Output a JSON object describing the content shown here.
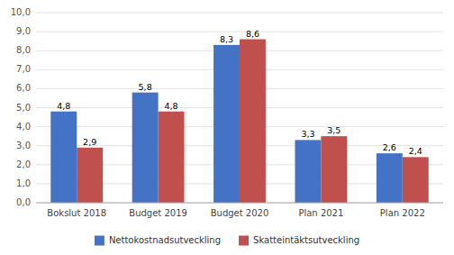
{
  "chart_data": {
    "type": "bar",
    "categories": [
      "Bokslut 2018",
      "Budget 2019",
      "Budget 2020",
      "Plan 2021",
      "Plan 2022"
    ],
    "series": [
      {
        "name": "Nettokostnadsutveckling",
        "color": "#4472C4",
        "values": [
          4.8,
          5.8,
          8.3,
          3.3,
          2.6
        ],
        "value_labels": [
          "4,8",
          "5,8",
          "8,3",
          "3,3",
          "2,6"
        ]
      },
      {
        "name": "Skatteintäktsutveckling",
        "color": "#C0504D",
        "values": [
          2.9,
          4.8,
          8.6,
          3.5,
          2.4
        ],
        "value_labels": [
          "2,9",
          "4,8",
          "8,6",
          "3,5",
          "2,4"
        ]
      }
    ],
    "ylim": [
      0,
      10
    ],
    "yticks": [
      {
        "value": 0.0,
        "label": "0,0"
      },
      {
        "value": 1.0,
        "label": "1,0"
      },
      {
        "value": 2.0,
        "label": "2,0"
      },
      {
        "value": 3.0,
        "label": "3,0"
      },
      {
        "value": 4.0,
        "label": "4,0"
      },
      {
        "value": 5.0,
        "label": "5,0"
      },
      {
        "value": 6.0,
        "label": "6,0"
      },
      {
        "value": 7.0,
        "label": "7,0"
      },
      {
        "value": 8.0,
        "label": "8,0"
      },
      {
        "value": 9.0,
        "label": "9,0"
      },
      {
        "value": 10.0,
        "label": "10,0"
      }
    ],
    "grid": true,
    "data_labels": true,
    "legend": "bottom"
  }
}
